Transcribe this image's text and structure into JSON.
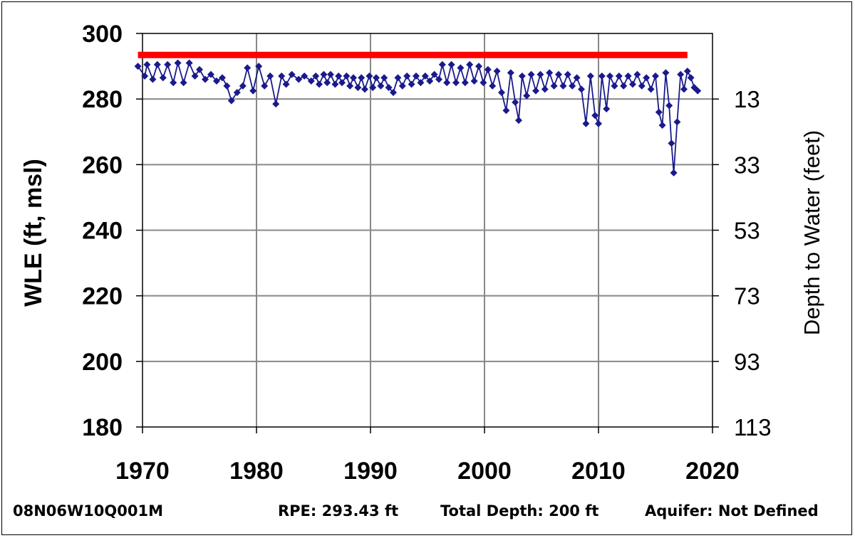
{
  "chart_data": {
    "type": "line",
    "title": "",
    "ylabel": "WLE (ft, msl)",
    "ylabel_right": "Depth to Water (feet)",
    "xlim": [
      1970,
      2020
    ],
    "ylim": [
      180,
      300
    ],
    "x_ticks": [
      "1970",
      "1980",
      "1990",
      "2000",
      "2010",
      "2020"
    ],
    "y_ticks": [
      "300",
      "280",
      "260",
      "240",
      "220",
      "200",
      "180"
    ],
    "y_right_ticks": [
      "13",
      "33",
      "53",
      "73",
      "93",
      "113"
    ],
    "grid": true,
    "colors": {
      "series": "#1a1a8c",
      "reference": "#ff0000"
    },
    "reference_line": {
      "value": 293.43,
      "x": [
        1969.6,
        2017.8
      ]
    },
    "series": [
      {
        "values": [
          [
            1969.6,
            290.0
          ],
          [
            1970.2,
            287.0
          ],
          [
            1970.4,
            290.5
          ],
          [
            1970.9,
            286.0
          ],
          [
            1971.3,
            290.5
          ],
          [
            1971.8,
            286.5
          ],
          [
            1972.2,
            290.5
          ],
          [
            1972.7,
            285.0
          ],
          [
            1973.1,
            291.0
          ],
          [
            1973.6,
            285.0
          ],
          [
            1974.1,
            291.0
          ],
          [
            1974.6,
            287.0
          ],
          [
            1975.0,
            289.0
          ],
          [
            1975.5,
            286.0
          ],
          [
            1976.0,
            287.5
          ],
          [
            1976.5,
            285.5
          ],
          [
            1977.0,
            286.5
          ],
          [
            1977.4,
            284.0
          ],
          [
            1977.8,
            279.5
          ],
          [
            1978.3,
            282.0
          ],
          [
            1978.8,
            284.0
          ],
          [
            1979.2,
            289.5
          ],
          [
            1979.7,
            282.5
          ],
          [
            1980.2,
            290.0
          ],
          [
            1980.7,
            284.0
          ],
          [
            1981.2,
            287.0
          ],
          [
            1981.7,
            278.5
          ],
          [
            1982.2,
            287.0
          ],
          [
            1982.6,
            284.5
          ],
          [
            1983.1,
            287.5
          ],
          [
            1983.7,
            286.0
          ],
          [
            1984.2,
            287.0
          ],
          [
            1984.8,
            285.5
          ],
          [
            1985.2,
            287.0
          ],
          [
            1985.5,
            284.5
          ],
          [
            1985.9,
            287.5
          ],
          [
            1986.2,
            285.0
          ],
          [
            1986.5,
            287.5
          ],
          [
            1986.9,
            284.5
          ],
          [
            1987.2,
            287.0
          ],
          [
            1987.5,
            285.0
          ],
          [
            1987.9,
            287.0
          ],
          [
            1988.2,
            284.0
          ],
          [
            1988.5,
            286.5
          ],
          [
            1988.9,
            283.5
          ],
          [
            1989.2,
            286.5
          ],
          [
            1989.5,
            283.0
          ],
          [
            1989.9,
            287.0
          ],
          [
            1990.2,
            283.5
          ],
          [
            1990.5,
            286.5
          ],
          [
            1990.9,
            284.0
          ],
          [
            1991.2,
            286.5
          ],
          [
            1991.6,
            283.5
          ],
          [
            1992.0,
            282.0
          ],
          [
            1992.4,
            286.5
          ],
          [
            1992.8,
            284.0
          ],
          [
            1993.2,
            287.0
          ],
          [
            1993.6,
            284.5
          ],
          [
            1994.0,
            287.0
          ],
          [
            1994.4,
            285.0
          ],
          [
            1994.8,
            287.0
          ],
          [
            1995.2,
            285.5
          ],
          [
            1995.6,
            287.5
          ],
          [
            1996.0,
            286.0
          ],
          [
            1996.3,
            290.5
          ],
          [
            1996.7,
            285.0
          ],
          [
            1997.1,
            290.5
          ],
          [
            1997.5,
            285.0
          ],
          [
            1997.9,
            289.5
          ],
          [
            1998.3,
            285.0
          ],
          [
            1998.7,
            290.5
          ],
          [
            1999.1,
            285.5
          ],
          [
            1999.5,
            290.0
          ],
          [
            1999.9,
            285.0
          ],
          [
            2000.3,
            289.0
          ],
          [
            2000.7,
            284.0
          ],
          [
            2001.1,
            288.5
          ],
          [
            2001.5,
            282.0
          ],
          [
            2001.9,
            276.5
          ],
          [
            2002.3,
            288.0
          ],
          [
            2002.7,
            279.0
          ],
          [
            2003.0,
            273.5
          ],
          [
            2003.3,
            287.0
          ],
          [
            2003.7,
            281.0
          ],
          [
            2004.1,
            287.5
          ],
          [
            2004.5,
            282.5
          ],
          [
            2004.9,
            287.5
          ],
          [
            2005.3,
            283.0
          ],
          [
            2005.7,
            288.0
          ],
          [
            2006.1,
            284.0
          ],
          [
            2006.5,
            287.5
          ],
          [
            2006.9,
            284.0
          ],
          [
            2007.3,
            287.5
          ],
          [
            2007.7,
            284.0
          ],
          [
            2008.1,
            286.5
          ],
          [
            2008.5,
            283.0
          ],
          [
            2008.9,
            272.5
          ],
          [
            2009.3,
            287.0
          ],
          [
            2009.7,
            275.0
          ],
          [
            2010.0,
            272.5
          ],
          [
            2010.3,
            287.0
          ],
          [
            2010.7,
            277.0
          ],
          [
            2011.0,
            287.0
          ],
          [
            2011.4,
            284.0
          ],
          [
            2011.8,
            287.0
          ],
          [
            2012.2,
            284.0
          ],
          [
            2012.6,
            287.0
          ],
          [
            2013.0,
            284.5
          ],
          [
            2013.4,
            287.5
          ],
          [
            2013.8,
            284.0
          ],
          [
            2014.2,
            286.5
          ],
          [
            2014.6,
            283.0
          ],
          [
            2015.0,
            287.0
          ],
          [
            2015.3,
            276.0
          ],
          [
            2015.6,
            272.0
          ],
          [
            2015.9,
            288.0
          ],
          [
            2016.2,
            278.0
          ],
          [
            2016.4,
            266.5
          ],
          [
            2016.6,
            257.5
          ],
          [
            2016.9,
            273.0
          ],
          [
            2017.2,
            287.5
          ],
          [
            2017.5,
            283.0
          ],
          [
            2017.8,
            288.5
          ],
          [
            2018.1,
            286.5
          ],
          [
            2018.4,
            283.5
          ],
          [
            2018.7,
            282.5
          ]
        ]
      }
    ]
  },
  "footer": {
    "well_id": "08N06W10Q001M",
    "rpe": "RPE: 293.43 ft",
    "total_depth": "Total Depth: 200 ft",
    "aquifer": "Aquifer: Not Defined"
  }
}
